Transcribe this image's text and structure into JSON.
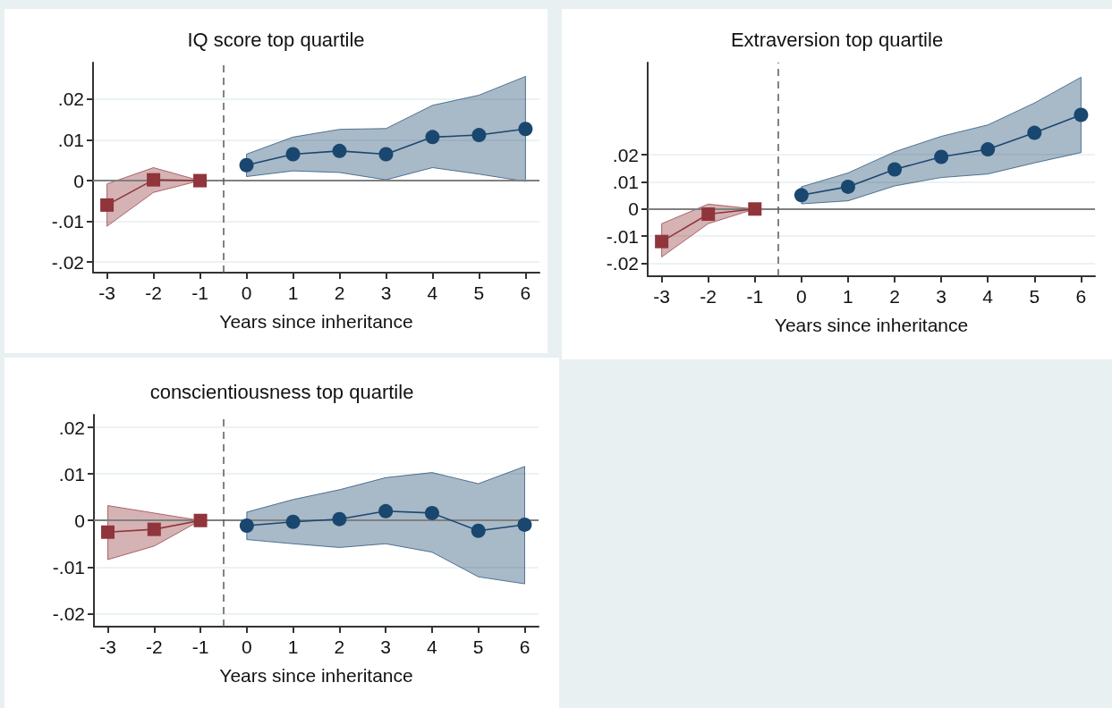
{
  "chart_data": [
    {
      "type": "line",
      "title": "IQ score top quartile",
      "xlabel": "Years since inheritance",
      "xlim": [
        -3.3,
        6.3
      ],
      "xticks": [
        -3,
        -2,
        -1,
        0,
        1,
        2,
        3,
        4,
        5,
        6
      ],
      "ylim": [
        -0.0226,
        0.029
      ],
      "yticks": [
        {
          "value": -0.02,
          "label": "-.02"
        },
        {
          "value": -0.01,
          "label": "-.01"
        },
        {
          "value": 0,
          "label": "0"
        },
        {
          "value": 0.01,
          "label": ".01"
        },
        {
          "value": 0.02,
          "label": ".02"
        }
      ],
      "grid": "y",
      "ref_lines": [
        {
          "axis": "y",
          "value": 0,
          "color": "#7f7f7f",
          "line_style": "solid"
        },
        {
          "axis": "x",
          "value": -0.5,
          "color": "#595959",
          "line_style": "dashed"
        }
      ],
      "series": [
        {
          "color": "#90353b",
          "marker": "square",
          "x": [
            -3,
            -2,
            -1
          ],
          "values": [
            -0.006,
            0.0002,
            0
          ],
          "lower": [
            -0.0112,
            -0.0029,
            0
          ],
          "upper": [
            -0.0008,
            0.0032,
            0
          ]
        },
        {
          "color": "#1a476f",
          "marker": "circle",
          "x": [
            0,
            1,
            2,
            3,
            4,
            5,
            6
          ],
          "values": [
            0.0038,
            0.0065,
            0.0073,
            0.0065,
            0.0107,
            0.0112,
            0.0127
          ],
          "lower": [
            0.001,
            0.0024,
            0.002,
            0.0002,
            0.0032,
            0.0016,
            -0.0002
          ],
          "upper": [
            0.0065,
            0.0107,
            0.0126,
            0.0128,
            0.0185,
            0.021,
            0.0256
          ]
        }
      ]
    },
    {
      "type": "line",
      "title": "Extraversion top quartile",
      "xlabel": "Years since inheritance",
      "xlim": [
        -3.3,
        6.3
      ],
      "xticks": [
        -3,
        -2,
        -1,
        0,
        1,
        2,
        3,
        4,
        5,
        6
      ],
      "ylim": [
        -0.0248,
        0.054
      ],
      "yticks": [
        {
          "value": -0.02,
          "label": "-.02"
        },
        {
          "value": -0.01,
          "label": "-.01"
        },
        {
          "value": 0,
          "label": "0"
        },
        {
          "value": 0.01,
          "label": ".01"
        },
        {
          "value": 0.02,
          "label": ".02"
        }
      ],
      "grid": "y",
      "ref_lines": [
        {
          "axis": "y",
          "value": 0,
          "color": "#7f7f7f",
          "line_style": "solid"
        },
        {
          "axis": "x",
          "value": -0.5,
          "color": "#595959",
          "line_style": "dashed"
        }
      ],
      "series": [
        {
          "color": "#90353b",
          "marker": "square",
          "x": [
            -3,
            -2,
            -1
          ],
          "values": [
            -0.012,
            -0.0019,
            0
          ],
          "lower": [
            -0.0177,
            -0.0054,
            0
          ],
          "upper": [
            -0.0054,
            0.0018,
            0
          ]
        },
        {
          "color": "#1a476f",
          "marker": "circle",
          "x": [
            0,
            1,
            2,
            3,
            4,
            5,
            6
          ],
          "values": [
            0.0051,
            0.0082,
            0.0146,
            0.0192,
            0.022,
            0.0281,
            0.0347
          ],
          "lower": [
            0.0019,
            0.003,
            0.0085,
            0.0116,
            0.0129,
            0.017,
            0.0208
          ],
          "upper": [
            0.0082,
            0.0133,
            0.0211,
            0.0268,
            0.031,
            0.0391,
            0.0486
          ]
        }
      ]
    },
    {
      "type": "line",
      "title": "conscientiousness top quartile",
      "xlabel": "Years since inheritance",
      "xlim": [
        -3.3,
        6.3
      ],
      "xticks": [
        -3,
        -2,
        -1,
        0,
        1,
        2,
        3,
        4,
        5,
        6
      ],
      "ylim": [
        -0.0228,
        0.0227
      ],
      "yticks": [
        {
          "value": -0.02,
          "label": "-.02"
        },
        {
          "value": -0.01,
          "label": "-.01"
        },
        {
          "value": 0,
          "label": "0"
        },
        {
          "value": 0.01,
          "label": ".01"
        },
        {
          "value": 0.02,
          "label": ".02"
        }
      ],
      "grid": "y",
      "ref_lines": [
        {
          "axis": "y",
          "value": 0,
          "color": "#7f7f7f",
          "line_style": "solid"
        },
        {
          "axis": "x",
          "value": -0.5,
          "color": "#595959",
          "line_style": "dashed"
        }
      ],
      "series": [
        {
          "color": "#90353b",
          "marker": "square",
          "x": [
            -3,
            -2,
            -1
          ],
          "values": [
            -0.0025,
            -0.0019,
            0
          ],
          "lower": [
            -0.0084,
            -0.0055,
            0
          ],
          "upper": [
            0.0032,
            0.0016,
            0
          ]
        },
        {
          "color": "#1a476f",
          "marker": "circle",
          "x": [
            0,
            1,
            2,
            3,
            4,
            5,
            6
          ],
          "values": [
            -0.0011,
            -0.0003,
            0.0003,
            0.002,
            0.0016,
            -0.0022,
            -0.0009
          ],
          "lower": [
            -0.0041,
            -0.005,
            -0.0058,
            -0.005,
            -0.0068,
            -0.0121,
            -0.0136
          ],
          "upper": [
            0.0018,
            0.0045,
            0.0066,
            0.0092,
            0.0103,
            0.0079,
            0.0116
          ]
        }
      ]
    }
  ]
}
